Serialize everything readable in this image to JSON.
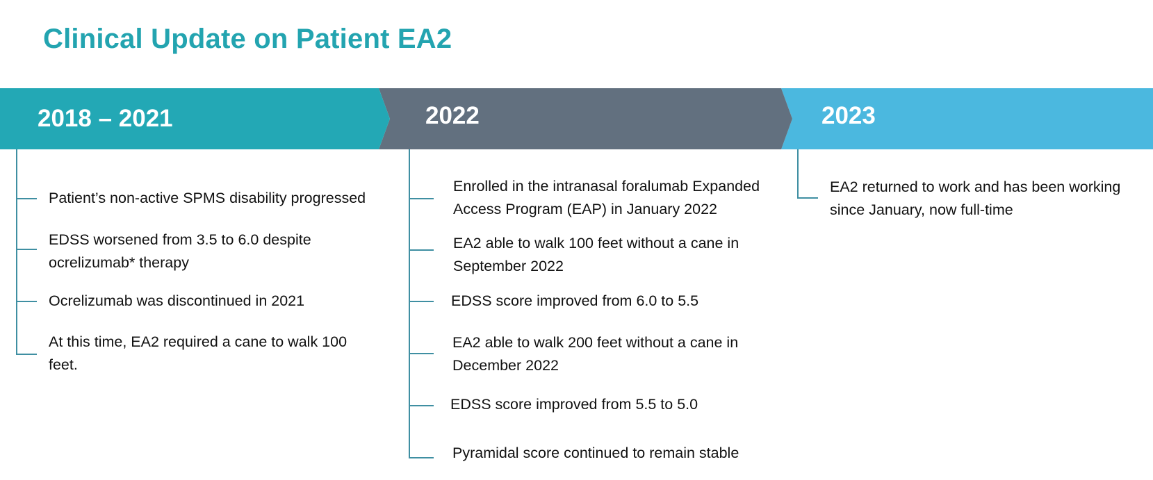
{
  "title": "Clinical Update on Patient EA2",
  "colors": {
    "title": "#23a4b0",
    "period1": "#23a8b5",
    "period2": "#62707f",
    "period3": "#4bb8df",
    "connector": "#3f8fa2"
  },
  "periods": [
    {
      "year": "2018 – 2021",
      "items": [
        {
          "lines": [
            "Patient’s non-active SPMS disability progressed"
          ]
        },
        {
          "lines": [
            "EDSS worsened from 3.5 to 6.0 despite",
            "ocrelizumab* therapy"
          ]
        },
        {
          "lines": [
            "Ocrelizumab was discontinued in 2021"
          ]
        },
        {
          "lines": [
            "At this time, EA2 required a cane to walk 100",
            "feet."
          ]
        }
      ]
    },
    {
      "year": "2022",
      "items": [
        {
          "lines": [
            "Enrolled in the intranasal foralumab Expanded",
            "Access Program (EAP) in January 2022"
          ]
        },
        {
          "lines": [
            "EA2 able to walk 100 feet without a cane in",
            "September 2022"
          ]
        },
        {
          "lines": [
            "EDSS score improved from 6.0 to 5.5"
          ]
        },
        {
          "lines": [
            "EA2 able to walk 200 feet without a cane in",
            "December 2022"
          ]
        },
        {
          "lines": [
            "EDSS score improved from 5.5 to 5.0"
          ]
        },
        {
          "lines": [
            "Pyramidal score continued to remain stable"
          ]
        }
      ]
    },
    {
      "year": "2023",
      "items": [
        {
          "lines": [
            "EA2 returned to work and has been working",
            "since January, now full-time"
          ]
        }
      ]
    }
  ]
}
